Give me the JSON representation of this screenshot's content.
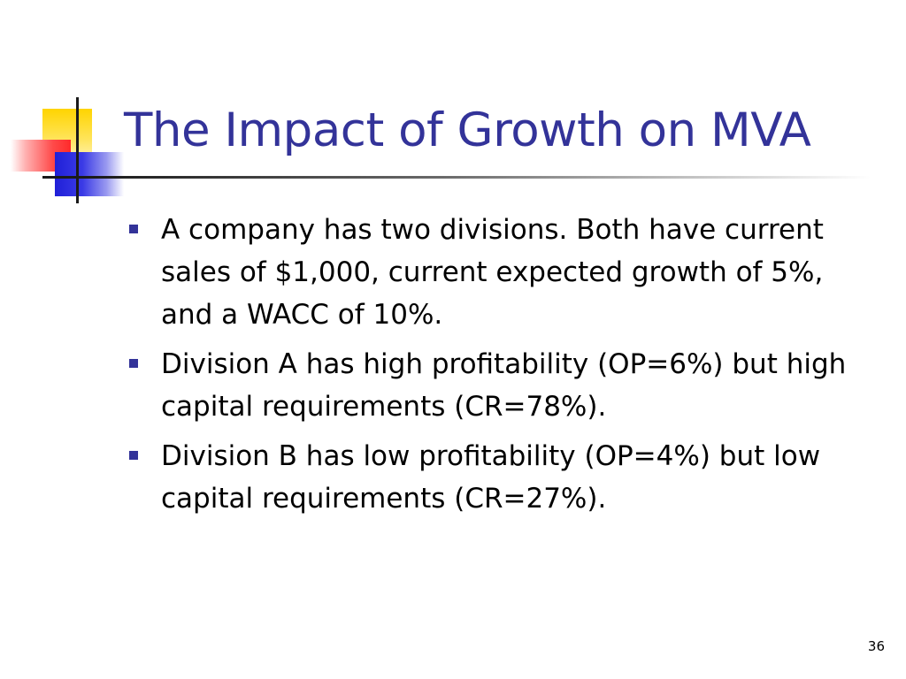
{
  "slide": {
    "title": "The Impact of Growth on MVA",
    "bullets": [
      "A company has two divisions.  Both have current sales of $1,000, current expected growth of 5%, and a WACC of 10%.",
      "Division A has high profitability (OP=6%) but high capital requirements (CR=78%).",
      "Division B has low profitability (OP=4%) but low capital requirements (CR=27%)."
    ],
    "page_number": "36"
  },
  "colors": {
    "title": "#333399",
    "bullet_marker": "#333399",
    "logo_yellow": "#ffd400",
    "logo_red": "#ff2a2a",
    "logo_blue": "#2020d8"
  },
  "icons": {
    "logo": "decorative-squares-logo",
    "bullet": "square-bullet-icon"
  }
}
